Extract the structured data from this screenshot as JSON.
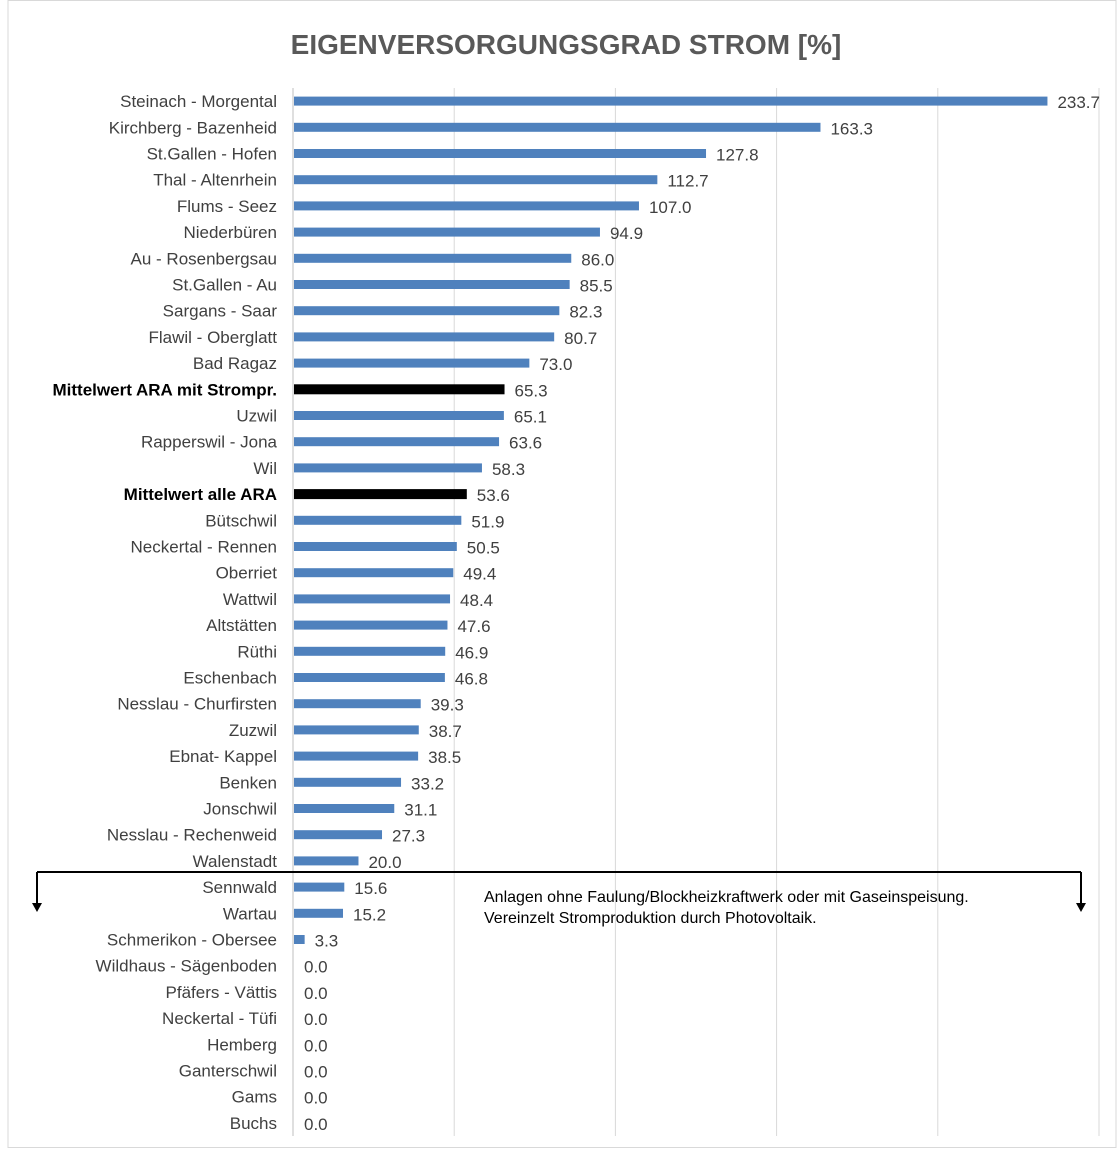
{
  "chart_data": {
    "type": "bar",
    "orientation": "horizontal",
    "title": "EIGENVERSORGUNGSGRAD  STROM [%]",
    "xlabel": "",
    "ylabel": "",
    "xlim": [
      0,
      250
    ],
    "grid": true,
    "categories": [
      "Steinach - Morgental",
      "Kirchberg - Bazenheid",
      "St.Gallen - Hofen",
      "Thal - Altenrhein",
      "Flums - Seez",
      "Niederbüren",
      "Au - Rosenbergsau",
      "St.Gallen - Au",
      "Sargans - Saar",
      "Flawil - Oberglatt",
      "Bad Ragaz",
      "Mittelwert ARA mit Strompr.",
      "Uzwil",
      "Rapperswil - Jona",
      "Wil",
      "Mittelwert alle ARA",
      "Bütschwil",
      "Neckertal - Rennen",
      "Oberriet",
      "Wattwil",
      "Altstätten",
      "Rüthi",
      "Eschenbach",
      "Nesslau - Churfirsten",
      "Zuzwil",
      "Ebnat- Kappel",
      "Benken",
      "Jonschwil",
      "Nesslau - Rechenweid",
      "Walenstadt",
      "Sennwald",
      "Wartau",
      "Schmerikon - Obersee",
      "Wildhaus - Sägenboden",
      "Pfäfers - Vättis",
      "Neckertal - Tüfi",
      "Hemberg",
      "Ganterschwil",
      "Gams",
      "Buchs"
    ],
    "values": [
      233.7,
      163.3,
      127.8,
      112.7,
      107.0,
      94.9,
      86.0,
      85.5,
      82.3,
      80.7,
      73.0,
      65.3,
      65.1,
      63.6,
      58.3,
      53.6,
      51.9,
      50.5,
      49.4,
      48.4,
      47.6,
      46.9,
      46.8,
      39.3,
      38.7,
      38.5,
      33.2,
      31.1,
      27.3,
      20.0,
      15.6,
      15.2,
      3.3,
      0.0,
      0.0,
      0.0,
      0.0,
      0.0,
      0.0,
      0.0
    ],
    "value_labels": [
      "233.7",
      "163.3",
      "127.8",
      "112.7",
      "107.0",
      "94.9",
      "86.0",
      "85.5",
      "82.3",
      "80.7",
      "73.0",
      "65.3",
      "65.1",
      "63.6",
      "58.3",
      "53.6",
      "51.9",
      "50.5",
      "49.4",
      "48.4",
      "47.6",
      "46.9",
      "46.8",
      "39.3",
      "38.7",
      "38.5",
      "33.2",
      "31.1",
      "27.3",
      "20.0",
      "15.6",
      "15.2",
      "3.3",
      "0.0",
      "0.0",
      "0.0",
      "0.0",
      "0.0",
      "0.0",
      "0.0"
    ],
    "highlighted_categories": [
      "Mittelwert ARA mit Strompr.",
      "Mittelwert alle ARA"
    ],
    "bar_color": "#4f81bd",
    "highlight_color": "#000000",
    "annotation": {
      "lines": [
        "Anlagen ohne Faulung/Blockheizkraftwerk oder mit Gaseinspeisung.",
        "Vereinzelt Stromproduktion durch Photovoltaik."
      ]
    }
  }
}
